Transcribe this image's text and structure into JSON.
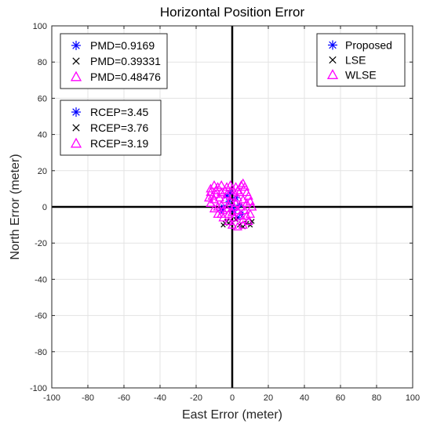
{
  "chart_data": {
    "type": "scatter",
    "title": "Horizontal Position Error",
    "xlabel": "East Error (meter)",
    "ylabel": "North Error (meter)",
    "xlim": [
      -100,
      100
    ],
    "ylim": [
      -100,
      100
    ],
    "xticks": [
      -100,
      -80,
      -60,
      -40,
      -20,
      0,
      20,
      40,
      60,
      80,
      100
    ],
    "yticks": [
      -100,
      -80,
      -60,
      -40,
      -20,
      0,
      20,
      40,
      60,
      80,
      100
    ],
    "grid": true,
    "series": [
      {
        "name": "Proposed",
        "marker": "asterisk",
        "color": "#0000ff",
        "points": [
          [
            -2,
            3
          ],
          [
            -5,
            0
          ],
          [
            1,
            -2
          ],
          [
            4,
            1
          ],
          [
            -3,
            6
          ],
          [
            2,
            5
          ],
          [
            -6,
            -2
          ],
          [
            5,
            -4
          ],
          [
            0,
            0
          ],
          [
            -1,
            8
          ],
          [
            3,
            -6
          ]
        ]
      },
      {
        "name": "LSE",
        "marker": "x",
        "color": "#000000",
        "points": [
          [
            -5,
            -10
          ],
          [
            -4,
            -9
          ],
          [
            -3,
            -8
          ],
          [
            6,
            -11
          ],
          [
            8,
            -9
          ],
          [
            10,
            -10
          ],
          [
            2,
            -7
          ],
          [
            -2,
            -9
          ],
          [
            11,
            -8
          ],
          [
            4,
            -10
          ]
        ]
      },
      {
        "name": "WLSE",
        "marker": "triangle",
        "color": "#ff00ff",
        "points": [
          [
            -12,
            10
          ],
          [
            -10,
            12
          ],
          [
            -8,
            11
          ],
          [
            -6,
            12
          ],
          [
            -3,
            11
          ],
          [
            0,
            10
          ],
          [
            3,
            9
          ],
          [
            5,
            12
          ],
          [
            6,
            13
          ],
          [
            7,
            11
          ],
          [
            9,
            6
          ],
          [
            10,
            3
          ],
          [
            11,
            0
          ],
          [
            10,
            -4
          ],
          [
            9,
            -8
          ],
          [
            6,
            -10
          ],
          [
            3,
            -11
          ],
          [
            0,
            -10
          ],
          [
            -2,
            -8
          ],
          [
            -5,
            -6
          ],
          [
            -8,
            -4
          ],
          [
            -10,
            -1
          ],
          [
            -12,
            2
          ],
          [
            -13,
            5
          ],
          [
            -12,
            8
          ],
          [
            -9,
            9
          ],
          [
            -6,
            8
          ],
          [
            -3,
            7
          ],
          [
            0,
            6
          ],
          [
            3,
            5
          ],
          [
            6,
            4
          ],
          [
            8,
            2
          ],
          [
            7,
            -2
          ],
          [
            4,
            -5
          ],
          [
            1,
            -6
          ],
          [
            -2,
            -4
          ],
          [
            -5,
            -2
          ],
          [
            -8,
            0
          ],
          [
            -10,
            4
          ],
          [
            -7,
            5
          ],
          [
            -4,
            4
          ],
          [
            -1,
            3
          ],
          [
            2,
            2
          ],
          [
            5,
            0
          ],
          [
            3,
            -2
          ],
          [
            0,
            -3
          ],
          [
            -3,
            -1
          ],
          [
            -6,
            1
          ],
          [
            -2,
            1
          ],
          [
            1,
            0
          ],
          [
            -9,
            7
          ],
          [
            -11,
            6
          ],
          [
            4,
            8
          ],
          [
            8,
            8
          ],
          [
            2,
            11
          ],
          [
            -1,
            12
          ],
          [
            -4,
            9
          ],
          [
            6,
            -7
          ],
          [
            8,
            -5
          ],
          [
            -6,
            -4
          ]
        ]
      }
    ],
    "legends": [
      {
        "position": "top-right",
        "entries": [
          {
            "label": "Proposed",
            "series": 0
          },
          {
            "label": "LSE",
            "series": 1
          },
          {
            "label": "WLSE",
            "series": 2
          }
        ]
      },
      {
        "position": "top-left",
        "entries": [
          {
            "label": "PMD=0.9169",
            "series": 0
          },
          {
            "label": "PMD=0.39331",
            "series": 1
          },
          {
            "label": "PMD=0.48476",
            "series": 2
          }
        ]
      },
      {
        "position": "upper-left",
        "entries": [
          {
            "label": "RCEP=3.45",
            "series": 0
          },
          {
            "label": "RCEP=3.76",
            "series": 1
          },
          {
            "label": "RCEP=3.19",
            "series": 2
          }
        ]
      }
    ]
  }
}
